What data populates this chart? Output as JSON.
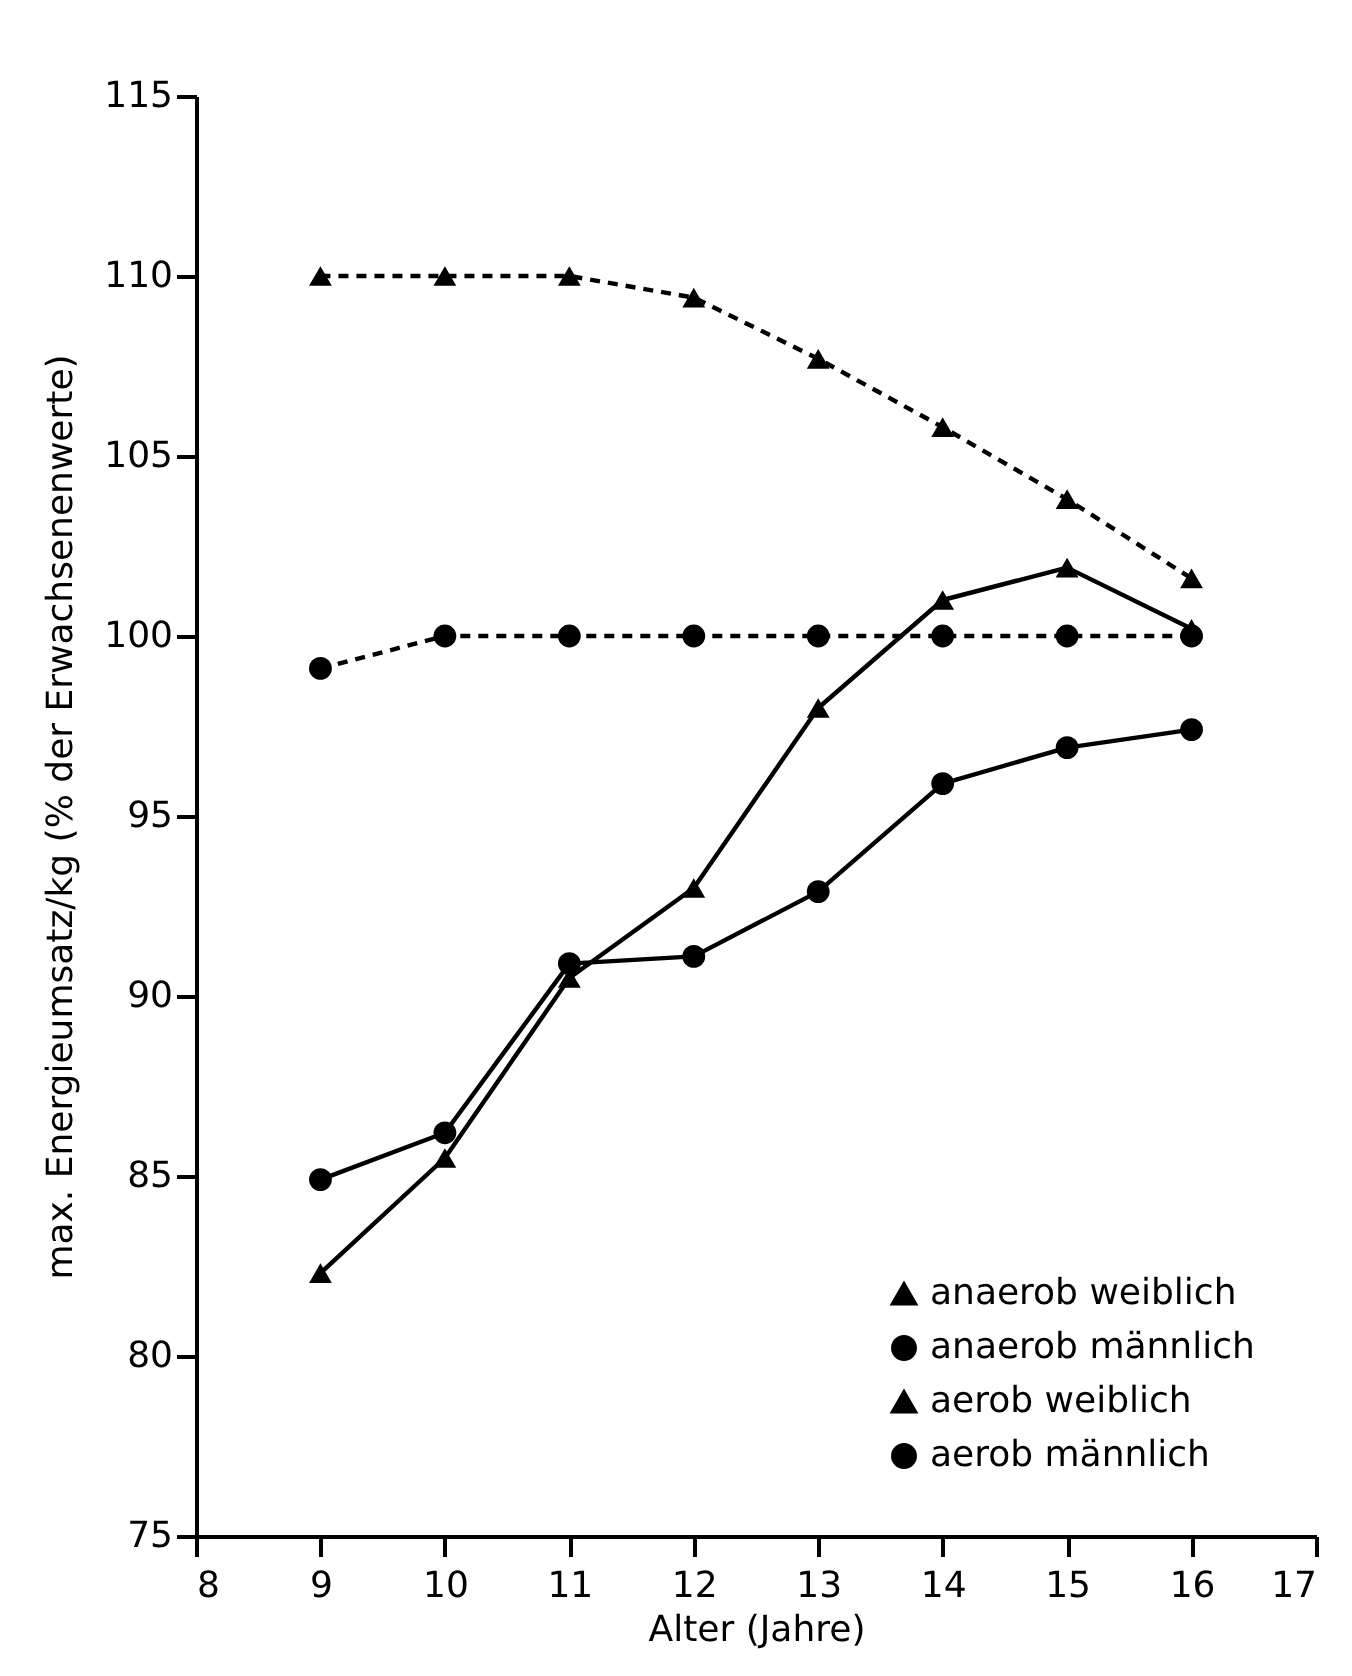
{
  "chart_data": {
    "type": "line",
    "xlabel": "Alter (Jahre)",
    "ylabel": "max. Energieumsatz/kg (% der Erwachsenenwerte)",
    "x": [
      9,
      10,
      11,
      12,
      13,
      14,
      15,
      16
    ],
    "xlim": [
      8,
      17
    ],
    "xticks": [
      8,
      9,
      10,
      11,
      12,
      13,
      14,
      15,
      16,
      17
    ],
    "ylim": [
      75,
      115
    ],
    "yticks": [
      75,
      80,
      85,
      90,
      95,
      100,
      105,
      110,
      115
    ],
    "grid": false,
    "legend": "bottom right",
    "series": [
      {
        "name": "anaerob weiblich",
        "color": "#000000",
        "marker": "triangle",
        "line_style": "solid",
        "values": [
          82.3,
          85.5,
          90.5,
          93,
          98,
          101,
          101.9,
          100.2
        ]
      },
      {
        "name": "anaerob männlich",
        "color": "#000000",
        "marker": "circle",
        "line_style": "solid",
        "values": [
          84.9,
          86.2,
          90.9,
          91.1,
          92.9,
          95.9,
          96.9,
          97.4
        ]
      },
      {
        "name": "aerob weiblich",
        "color": "#000000",
        "marker": "triangle",
        "line_style": "dashed",
        "values": [
          110,
          110,
          110,
          109.4,
          107.7,
          105.8,
          103.8,
          101.6
        ]
      },
      {
        "name": "aerob männlich",
        "color": "#000000",
        "marker": "circle",
        "line_style": "dashed",
        "values": [
          99.1,
          100,
          100,
          100,
          100,
          100,
          100,
          100
        ]
      }
    ]
  }
}
